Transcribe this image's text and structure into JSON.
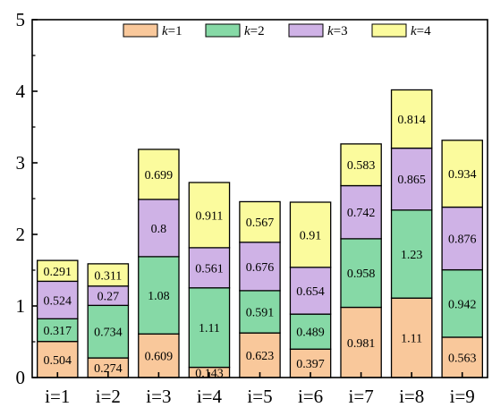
{
  "chart_data": {
    "type": "bar",
    "stacked": true,
    "categories": [
      "i=1",
      "i=2",
      "i=3",
      "i=4",
      "i=5",
      "i=6",
      "i=7",
      "i=8",
      "i=9"
    ],
    "series": [
      {
        "name": "k=1",
        "name_var": "k",
        "name_rest": "=1",
        "color": "#f9c89b",
        "values": [
          0.504,
          0.274,
          0.609,
          0.143,
          0.623,
          0.397,
          0.981,
          1.11,
          0.563
        ],
        "labels": [
          "0.504",
          "0.274",
          "0.609",
          "0.143",
          "0.623",
          "0.397",
          "0.981",
          "1.11",
          "0.563"
        ]
      },
      {
        "name": "k=2",
        "name_var": "k",
        "name_rest": "=2",
        "color": "#86d9a6",
        "values": [
          0.317,
          0.734,
          1.08,
          1.11,
          0.591,
          0.489,
          0.958,
          1.23,
          0.942
        ],
        "labels": [
          "0.317",
          "0.734",
          "1.08",
          "1.11",
          "0.591",
          "0.489",
          "0.958",
          "1.23",
          "0.942"
        ]
      },
      {
        "name": "k=3",
        "name_var": "k",
        "name_rest": "=3",
        "color": "#cfb2e6",
        "values": [
          0.524,
          0.27,
          0.8,
          0.561,
          0.676,
          0.654,
          0.742,
          0.865,
          0.876
        ],
        "labels": [
          "0.524",
          "0.27",
          "0.8",
          "0.561",
          "0.676",
          "0.654",
          "0.742",
          "0.865",
          "0.876"
        ]
      },
      {
        "name": "k=4",
        "name_var": "k",
        "name_rest": "=4",
        "color": "#fbfb9d",
        "values": [
          0.291,
          0.311,
          0.699,
          0.911,
          0.567,
          0.91,
          0.583,
          0.814,
          0.934
        ],
        "labels": [
          "0.291",
          "0.311",
          "0.699",
          "0.911",
          "0.567",
          "0.91",
          "0.583",
          "0.814",
          "0.934"
        ]
      }
    ],
    "y_ticks": [
      "0",
      "1",
      "2",
      "3",
      "4",
      "5"
    ],
    "ylim": [
      0,
      5
    ],
    "grid": false,
    "legend_position": "top"
  }
}
